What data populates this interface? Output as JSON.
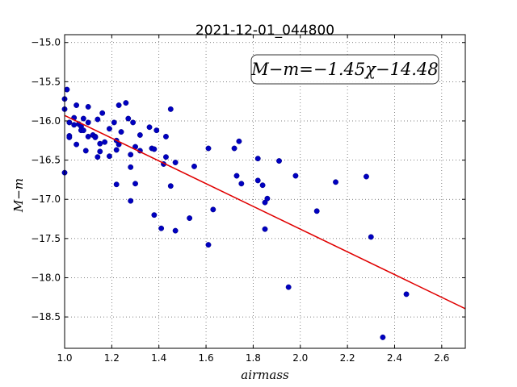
{
  "chart_data": {
    "type": "scatter",
    "title": "2021-12-01_044800",
    "xlabel": "airmass",
    "ylabel": "M−m",
    "xlim": [
      1.0,
      2.7
    ],
    "ylim": [
      -18.9,
      -14.9
    ],
    "y_inverted": true,
    "xticks": [
      "1.0",
      "1.2",
      "1.4",
      "1.6",
      "1.8",
      "2.0",
      "2.2",
      "2.4",
      "2.6"
    ],
    "xtick_values": [
      1.0,
      1.2,
      1.4,
      1.6,
      1.8,
      2.0,
      2.2,
      2.4,
      2.6
    ],
    "yticks": [
      "−15.0",
      "−15.5",
      "−16.0",
      "−16.5",
      "−17.0",
      "−17.5",
      "−18.0",
      "−18.5"
    ],
    "ytick_values": [
      -15.0,
      -15.5,
      -16.0,
      -16.5,
      -17.0,
      -17.5,
      -18.0,
      -18.5
    ],
    "grid": true,
    "annotation": "M−m=−1.45χ−14.48",
    "fit_line": {
      "slope": -1.45,
      "intercept": -14.48,
      "x_range": [
        1.0,
        2.7
      ]
    },
    "colors": {
      "points": "#0000c0",
      "fit_line": "#e00000",
      "grid": "#555555"
    },
    "points": [
      [
        1.0,
        -15.72
      ],
      [
        1.0,
        -15.85
      ],
      [
        1.0,
        -16.66
      ],
      [
        1.01,
        -15.6
      ],
      [
        1.02,
        -16.02
      ],
      [
        1.02,
        -16.19
      ],
      [
        1.02,
        -16.21
      ],
      [
        1.04,
        -15.96
      ],
      [
        1.04,
        -16.05
      ],
      [
        1.05,
        -15.8
      ],
      [
        1.05,
        -16.3
      ],
      [
        1.06,
        -16.04
      ],
      [
        1.07,
        -16.07
      ],
      [
        1.07,
        -16.12
      ],
      [
        1.08,
        -15.97
      ],
      [
        1.08,
        -16.12
      ],
      [
        1.09,
        -16.38
      ],
      [
        1.1,
        -15.82
      ],
      [
        1.1,
        -16.02
      ],
      [
        1.1,
        -16.2
      ],
      [
        1.12,
        -16.18
      ],
      [
        1.13,
        -16.2
      ],
      [
        1.13,
        -16.21
      ],
      [
        1.14,
        -15.98
      ],
      [
        1.14,
        -16.46
      ],
      [
        1.15,
        -16.29
      ],
      [
        1.15,
        -16.39
      ],
      [
        1.16,
        -15.9
      ],
      [
        1.17,
        -16.27
      ],
      [
        1.19,
        -16.1
      ],
      [
        1.19,
        -16.45
      ],
      [
        1.21,
        -16.02
      ],
      [
        1.22,
        -16.25
      ],
      [
        1.22,
        -16.37
      ],
      [
        1.22,
        -16.81
      ],
      [
        1.23,
        -15.8
      ],
      [
        1.23,
        -16.3
      ],
      [
        1.24,
        -16.14
      ],
      [
        1.26,
        -15.77
      ],
      [
        1.27,
        -15.97
      ],
      [
        1.28,
        -16.43
      ],
      [
        1.28,
        -16.59
      ],
      [
        1.28,
        -17.02
      ],
      [
        1.29,
        -16.02
      ],
      [
        1.3,
        -16.33
      ],
      [
        1.3,
        -16.8
      ],
      [
        1.32,
        -16.18
      ],
      [
        1.32,
        -16.38
      ],
      [
        1.36,
        -16.08
      ],
      [
        1.37,
        -16.35
      ],
      [
        1.38,
        -16.36
      ],
      [
        1.38,
        -17.2
      ],
      [
        1.39,
        -16.12
      ],
      [
        1.41,
        -17.37
      ],
      [
        1.42,
        -16.55
      ],
      [
        1.43,
        -16.2
      ],
      [
        1.43,
        -16.46
      ],
      [
        1.45,
        -15.85
      ],
      [
        1.45,
        -16.83
      ],
      [
        1.47,
        -16.53
      ],
      [
        1.47,
        -17.4
      ],
      [
        1.53,
        -17.24
      ],
      [
        1.55,
        -16.58
      ],
      [
        1.61,
        -16.35
      ],
      [
        1.61,
        -17.58
      ],
      [
        1.63,
        -17.13
      ],
      [
        1.72,
        -16.35
      ],
      [
        1.73,
        -16.7
      ],
      [
        1.74,
        -16.26
      ],
      [
        1.75,
        -16.8
      ],
      [
        1.82,
        -16.48
      ],
      [
        1.82,
        -16.76
      ],
      [
        1.84,
        -16.82
      ],
      [
        1.85,
        -17.04
      ],
      [
        1.85,
        -17.38
      ],
      [
        1.86,
        -16.99
      ],
      [
        1.91,
        -16.51
      ],
      [
        1.95,
        -18.12
      ],
      [
        1.98,
        -16.7
      ],
      [
        2.07,
        -17.15
      ],
      [
        2.15,
        -16.78
      ],
      [
        2.28,
        -16.71
      ],
      [
        2.3,
        -17.48
      ],
      [
        2.35,
        -18.76
      ],
      [
        2.45,
        -18.21
      ]
    ]
  }
}
